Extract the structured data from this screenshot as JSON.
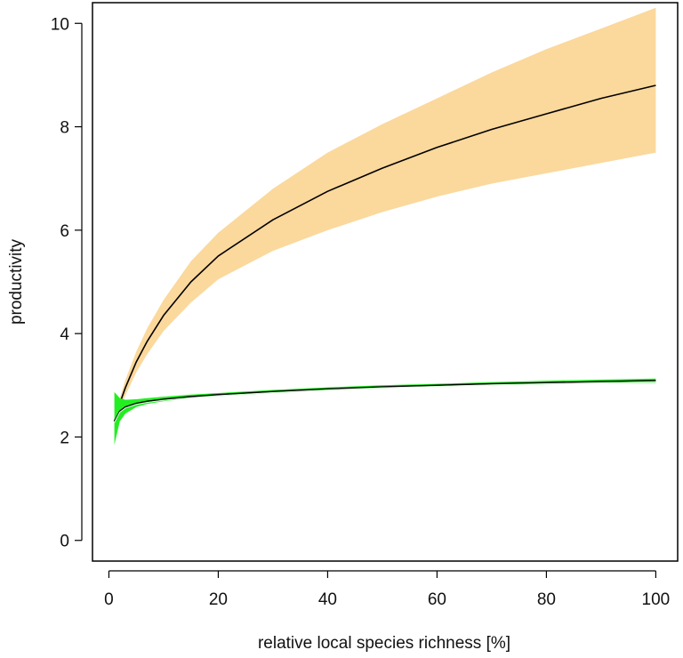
{
  "chart_data": {
    "type": "line",
    "title": "",
    "xlabel": "relative local species richness [%]",
    "ylabel": "productivity",
    "xlim": [
      -3,
      104
    ],
    "ylim": [
      -0.4,
      10.4
    ],
    "grid": false,
    "legend": "none",
    "x_ticks": [
      0,
      20,
      40,
      60,
      80,
      100
    ],
    "y_ticks": [
      0,
      2,
      4,
      6,
      8,
      10
    ],
    "x_tick_labels": [
      "0",
      "20",
      "40",
      "60",
      "80",
      "100"
    ],
    "y_tick_labels": [
      "0",
      "2",
      "4",
      "6",
      "8",
      "10"
    ],
    "series": [
      {
        "color": "#000000",
        "band_color": "#fbd89c",
        "x": [
          1,
          2,
          3,
          5,
          7,
          10,
          15,
          20,
          30,
          40,
          50,
          60,
          70,
          80,
          90,
          100
        ],
        "y": [
          2.3,
          2.65,
          2.95,
          3.45,
          3.85,
          4.35,
          5.0,
          5.5,
          6.2,
          6.75,
          7.2,
          7.6,
          7.95,
          8.25,
          8.55,
          8.8
        ],
        "lower": [
          2.25,
          2.55,
          2.8,
          3.25,
          3.6,
          4.05,
          4.6,
          5.05,
          5.6,
          6.0,
          6.35,
          6.65,
          6.9,
          7.1,
          7.3,
          7.5
        ],
        "upper": [
          2.35,
          2.75,
          3.1,
          3.65,
          4.1,
          4.65,
          5.4,
          5.95,
          6.8,
          7.5,
          8.05,
          8.55,
          9.05,
          9.5,
          9.9,
          10.3
        ]
      },
      {
        "color": "#000000",
        "band_color": "#22ee22",
        "mean_color": "#d9f7d9",
        "x": [
          1,
          2,
          3,
          5,
          7,
          10,
          15,
          20,
          30,
          40,
          50,
          60,
          70,
          80,
          90,
          100
        ],
        "y": [
          2.3,
          2.5,
          2.58,
          2.65,
          2.69,
          2.73,
          2.78,
          2.82,
          2.88,
          2.93,
          2.97,
          3.0,
          3.03,
          3.05,
          3.07,
          3.09
        ],
        "lower": [
          1.85,
          2.3,
          2.45,
          2.58,
          2.64,
          2.69,
          2.75,
          2.79,
          2.85,
          2.9,
          2.94,
          2.98,
          3.0,
          3.02,
          3.04,
          3.05
        ],
        "upper": [
          2.87,
          2.75,
          2.72,
          2.73,
          2.75,
          2.78,
          2.82,
          2.85,
          2.91,
          2.96,
          3.0,
          3.03,
          3.06,
          3.09,
          3.11,
          3.13
        ]
      }
    ]
  }
}
